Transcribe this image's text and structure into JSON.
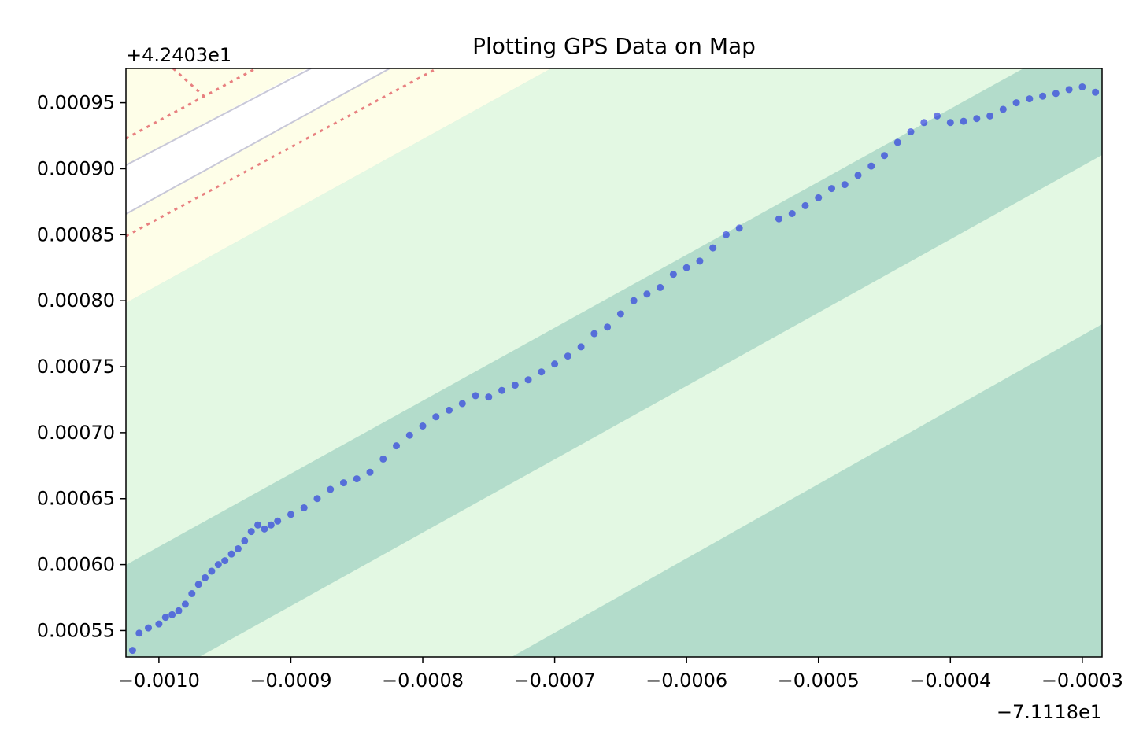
{
  "chart_data": {
    "type": "scatter",
    "title": "Plotting GPS Data on Map",
    "xlabel": "",
    "ylabel": "",
    "x_offset_label": "−7.1118e1",
    "y_offset_label": "+4.2403e1",
    "x_offset": -71.118,
    "y_offset": 42.403,
    "xlim": [
      -0.001025,
      -0.000285
    ],
    "ylim": [
      0.00053,
      0.000976
    ],
    "x_ticks": [
      -0.001,
      -0.0009,
      -0.0008,
      -0.0007,
      -0.0006,
      -0.0005,
      -0.0004,
      -0.0003
    ],
    "x_tick_labels": [
      "−0.0010",
      "−0.0009",
      "−0.0008",
      "−0.0007",
      "−0.0006",
      "−0.0005",
      "−0.0004",
      "−0.0003"
    ],
    "y_ticks": [
      0.00055,
      0.0006,
      0.00065,
      0.0007,
      0.00075,
      0.0008,
      0.00085,
      0.0009,
      0.00095
    ],
    "y_tick_labels": [
      "0.00055",
      "0.00060",
      "0.00065",
      "0.00070",
      "0.00075",
      "0.00080",
      "0.00085",
      "0.00090",
      "0.00095"
    ],
    "grid": false,
    "background": "map image (diagonal bands: dark green, light green, yellow, white road with dotted red lines)",
    "colors": {
      "points": "#0a14e6",
      "band_dark": "#b3dccb",
      "band_light": "#e3f8e3",
      "band_yellow": "#fefee8",
      "road_white": "#ffffff",
      "dotted_red": "#e88080"
    },
    "series": [
      {
        "x": [
          -0.00102,
          -0.001015,
          -0.001008,
          -0.001,
          -0.000995,
          -0.00099,
          -0.000985,
          -0.00098,
          -0.000975,
          -0.00097,
          -0.000965,
          -0.00096,
          -0.000955,
          -0.00095,
          -0.000945,
          -0.00094,
          -0.000935,
          -0.00093,
          -0.000925,
          -0.00092,
          -0.000915,
          -0.00091,
          -0.0009,
          -0.00089,
          -0.00088,
          -0.00087,
          -0.00086,
          -0.00085,
          -0.00084,
          -0.00083,
          -0.00082,
          -0.00081,
          -0.0008,
          -0.00079,
          -0.00078,
          -0.00077,
          -0.00076,
          -0.00075,
          -0.00074,
          -0.00073,
          -0.00072,
          -0.00071,
          -0.0007,
          -0.00069,
          -0.00068,
          -0.00067,
          -0.00066,
          -0.00065,
          -0.00064,
          -0.00063,
          -0.00062,
          -0.00061,
          -0.0006,
          -0.00059,
          -0.00058,
          -0.00057,
          -0.00056,
          -0.00053,
          -0.00052,
          -0.00051,
          -0.0005,
          -0.00049,
          -0.00048,
          -0.00047,
          -0.00046,
          -0.00045,
          -0.00044,
          -0.00043,
          -0.00042,
          -0.00041,
          -0.0004,
          -0.00039,
          -0.00038,
          -0.00037,
          -0.00036,
          -0.00035,
          -0.00034,
          -0.00033,
          -0.00032,
          -0.00031,
          -0.0003,
          -0.00029
        ],
        "y": [
          0.000535,
          0.000548,
          0.000552,
          0.000555,
          0.00056,
          0.000562,
          0.000565,
          0.00057,
          0.000578,
          0.000585,
          0.00059,
          0.000595,
          0.0006,
          0.000603,
          0.000608,
          0.000612,
          0.000618,
          0.000625,
          0.00063,
          0.000627,
          0.00063,
          0.000633,
          0.000638,
          0.000643,
          0.00065,
          0.000657,
          0.000662,
          0.000665,
          0.00067,
          0.00068,
          0.00069,
          0.000698,
          0.000705,
          0.000712,
          0.000717,
          0.000722,
          0.000728,
          0.000727,
          0.000732,
          0.000736,
          0.00074,
          0.000746,
          0.000752,
          0.000758,
          0.000765,
          0.000775,
          0.00078,
          0.00079,
          0.0008,
          0.000805,
          0.00081,
          0.00082,
          0.000825,
          0.00083,
          0.00084,
          0.00085,
          0.000855,
          0.000862,
          0.000866,
          0.000872,
          0.000878,
          0.000885,
          0.000888,
          0.000895,
          0.000902,
          0.00091,
          0.00092,
          0.000928,
          0.000935,
          0.00094,
          0.000935,
          0.000936,
          0.000938,
          0.00094,
          0.000945,
          0.00095,
          0.000953,
          0.000955,
          0.000957,
          0.00096,
          0.000962,
          0.000958
        ]
      }
    ]
  }
}
